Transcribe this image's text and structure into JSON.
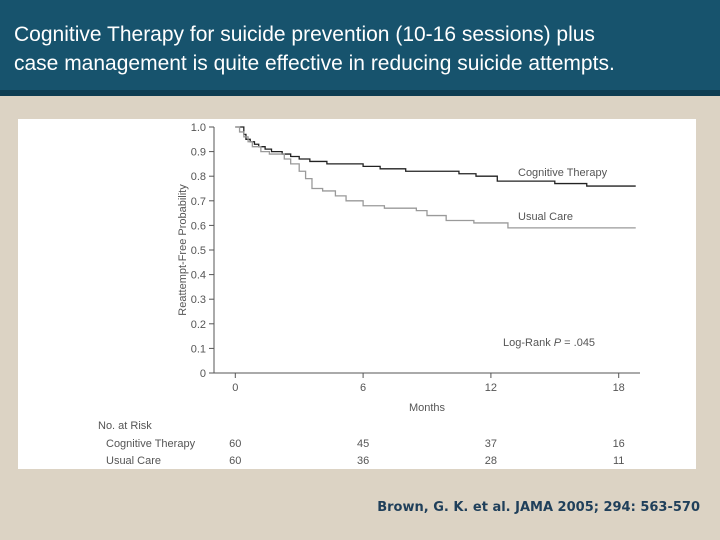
{
  "slide": {
    "title_line1": "Cognitive Therapy for suicide prevention (10-16 sessions) plus",
    "title_line2": "case management is quite effective in reducing suicide attempts.",
    "citation": "Brown, G. K. et al. JAMA 2005; 294: 563-570"
  },
  "colors": {
    "header": "#17536d",
    "background": "#dcd3c4",
    "cognitive_therapy": "#222222",
    "usual_care": "#9a9a9a",
    "axis": "#555555",
    "text": "#555555"
  },
  "chart_data": {
    "type": "line",
    "step": true,
    "title": "",
    "xlabel": "Months",
    "ylabel": "Reattempt-Free Probability",
    "xlim": [
      -1,
      19
    ],
    "ylim": [
      0,
      1.0
    ],
    "xticks": [
      0,
      6,
      12,
      18
    ],
    "yticks": [
      "0",
      "0.1",
      "0.2",
      "0.3",
      "0.4",
      "0.5",
      "0.6",
      "0.7",
      "0.8",
      "0.9",
      "1.0"
    ],
    "grid": false,
    "annotation": {
      "prefix": "Log-Rank ",
      "italic": "P",
      "suffix": " = .045"
    },
    "series": [
      {
        "name": "Cognitive Therapy",
        "x": [
          0,
          0.4,
          0.5,
          0.7,
          0.9,
          1.1,
          1.4,
          1.7,
          2.2,
          2.6,
          3.0,
          3.5,
          4.3,
          5.2,
          6.0,
          6.8,
          8.0,
          9.3,
          10.5,
          11.3,
          12.3,
          15.0,
          16.5,
          17.3,
          18.8
        ],
        "y": [
          1.0,
          0.97,
          0.95,
          0.94,
          0.93,
          0.92,
          0.91,
          0.9,
          0.89,
          0.88,
          0.87,
          0.86,
          0.85,
          0.85,
          0.84,
          0.83,
          0.82,
          0.82,
          0.81,
          0.8,
          0.78,
          0.77,
          0.76,
          0.76,
          0.76
        ]
      },
      {
        "name": "Usual Care",
        "x": [
          0,
          0.2,
          0.4,
          0.6,
          0.8,
          1.2,
          1.6,
          2.0,
          2.3,
          2.6,
          3.0,
          3.3,
          3.6,
          4.1,
          4.7,
          5.2,
          6.0,
          7.0,
          8.5,
          9.0,
          9.9,
          11.2,
          12.8,
          18.0,
          18.8
        ],
        "y": [
          1.0,
          0.98,
          0.96,
          0.94,
          0.92,
          0.9,
          0.89,
          0.89,
          0.87,
          0.85,
          0.82,
          0.79,
          0.75,
          0.74,
          0.72,
          0.7,
          0.68,
          0.67,
          0.66,
          0.64,
          0.62,
          0.61,
          0.59,
          0.59,
          0.59
        ]
      }
    ],
    "risk_table": {
      "title": "No. at Risk",
      "rows": [
        {
          "name": "Cognitive Therapy",
          "values": [
            "60",
            "45",
            "37",
            "16"
          ]
        },
        {
          "name": "Usual Care",
          "values": [
            "60",
            "36",
            "28",
            "11"
          ]
        }
      ]
    }
  }
}
